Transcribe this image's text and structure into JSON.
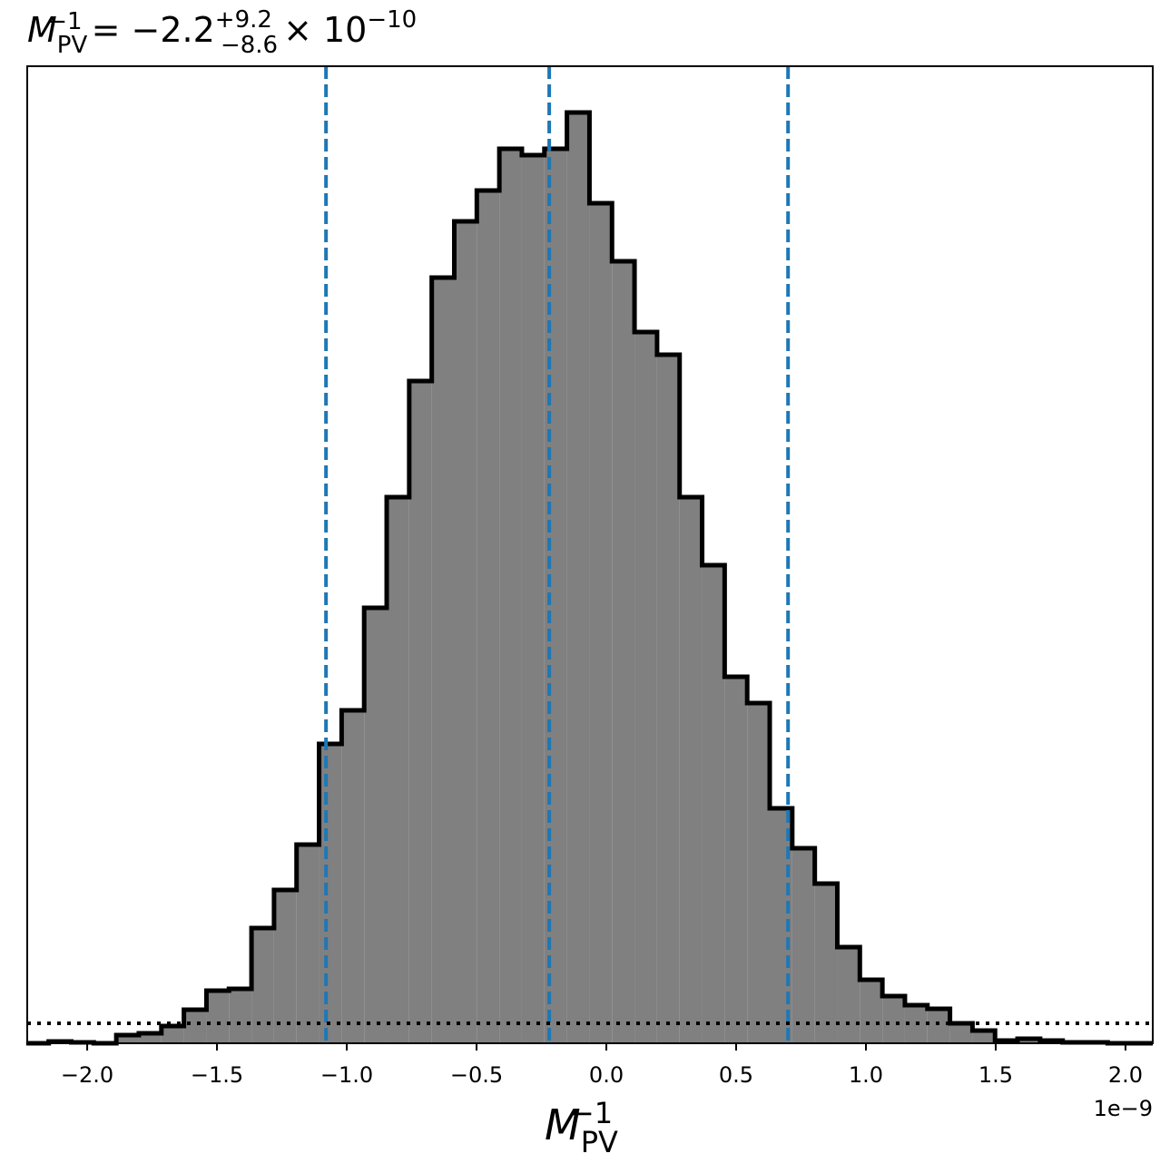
{
  "chart_data": {
    "type": "histogram",
    "title": {
      "symbol": "M",
      "subscript": "PV",
      "superscript": "−1",
      "value": "= −2.2",
      "upper": "+9.2",
      "lower": "−8.6",
      "scale": "× 10",
      "exponent": "−10"
    },
    "x_label": {
      "symbol": "M",
      "subscript": "PV",
      "superscript": "−1"
    },
    "x_offset_label": "1e−9",
    "bins": [
      -2.235,
      -2.1482,
      -2.0614,
      -1.9746,
      -1.8878,
      -1.801,
      -1.7142,
      -1.6274,
      -1.5406,
      -1.4538,
      -1.367,
      -1.2802,
      -1.1934,
      -1.1066,
      -1.0198,
      -0.933,
      -0.8462,
      -0.7594,
      -0.6726,
      -0.5858,
      -0.499,
      -0.4122,
      -0.3254,
      -0.2386,
      -0.1518,
      -0.065,
      0.0218,
      0.1086,
      0.1954,
      0.2822,
      0.369,
      0.4558,
      0.5426,
      0.6294,
      0.7162,
      0.803,
      0.8898,
      0.9766,
      1.0634,
      1.1502,
      1.237,
      1.3238,
      1.4106,
      1.4974,
      1.5842,
      1.671,
      1.7578,
      1.8446,
      1.9314,
      2.0182,
      2.105
    ],
    "values": [
      0,
      2,
      1,
      0,
      9,
      11,
      19,
      37,
      58,
      60,
      127,
      169,
      219,
      330,
      367,
      480,
      602,
      730,
      844,
      906,
      940,
      986,
      979,
      986,
      1026,
      926,
      862,
      784,
      759,
      602,
      527,
      404,
      375,
      259,
      215,
      176,
      106,
      70,
      52,
      42,
      38,
      22,
      14,
      3,
      5,
      3,
      1,
      1,
      0,
      0
    ],
    "color": "#808080",
    "edge_color": "#000000",
    "quantile_lines": [
      -1.08,
      -0.22,
      0.7
    ],
    "quantile_color": "#1f77b4",
    "threshold_line": 22,
    "xlim": [
      -2.231,
      2.105
    ],
    "ylim": [
      0,
      1077
    ],
    "xticks": [
      {
        "value": -2,
        "label": "−2.0"
      },
      {
        "value": -1.5,
        "label": "−1.5"
      },
      {
        "value": -1,
        "label": "−1.0"
      },
      {
        "value": -0.5,
        "label": "−0.5"
      },
      {
        "value": 0,
        "label": "0.0"
      },
      {
        "value": 0.5,
        "label": "0.5"
      },
      {
        "value": 1,
        "label": "1.0"
      },
      {
        "value": 1.5,
        "label": "1.5"
      },
      {
        "value": 2,
        "label": "2.0"
      }
    ]
  }
}
